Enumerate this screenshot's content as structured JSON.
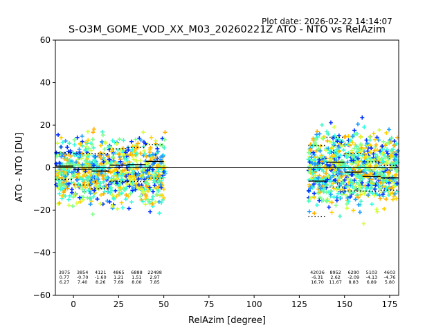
{
  "plot_date": "Plot date: 2026-02-22 14:14:07",
  "chart_data": {
    "type": "scatter",
    "title": "S-O3M_GOME_VOD_XX_M03_20260221Z ATO - NTO vs RelAzim",
    "xlabel": "RelAzim [degree]",
    "ylabel": "ATO - NTO [DU]",
    "xlim": [
      -10,
      180
    ],
    "ylim": [
      -60,
      60
    ],
    "xticks": [
      0,
      25,
      50,
      75,
      100,
      125,
      150,
      175
    ],
    "yticks": [
      -60,
      -40,
      -20,
      0,
      20,
      40,
      60
    ],
    "grid": false,
    "zero_line": 0,
    "scatter_colors": [
      "#1f9eff",
      "#2dffe0",
      "#7dff8a",
      "#d4ff3a",
      "#ffd000",
      "#ffb000",
      "#0030ff",
      "#42f5c8"
    ],
    "clusters": [
      {
        "x_range": [
          -10,
          51
        ],
        "y_center": -2,
        "y_spread": 14
      },
      {
        "x_range": [
          130,
          180
        ],
        "y_center": 0,
        "y_spread": 16
      }
    ],
    "bins": [
      {
        "x_range": [
          -10,
          0
        ],
        "mean": 0.77,
        "std": 6.27,
        "n": 3975,
        "n_label": "3975",
        "mean_label": "0.77",
        "std_label": "6.27"
      },
      {
        "x_range": [
          0,
          10
        ],
        "mean": -0.7,
        "std": 7.4,
        "n": 3854,
        "n_label": "3854",
        "mean_label": "-0.70",
        "std_label": "7.40"
      },
      {
        "x_range": [
          10,
          20
        ],
        "mean": -1.6,
        "std": 8.26,
        "n": 4121,
        "n_label": "4121",
        "mean_label": "-1.60",
        "std_label": "8.26"
      },
      {
        "x_range": [
          20,
          30
        ],
        "mean": 1.21,
        "std": 7.69,
        "n": 4865,
        "n_label": "4865",
        "mean_label": "1.21",
        "std_label": "7.69"
      },
      {
        "x_range": [
          30,
          40
        ],
        "mean": 1.51,
        "std": 8.0,
        "n": 6888,
        "n_label": "6888",
        "mean_label": "1.51",
        "std_label": "8.00"
      },
      {
        "x_range": [
          40,
          50
        ],
        "mean": 2.97,
        "std": 7.85,
        "n": 22498,
        "n_label": "22498",
        "mean_label": "2.97",
        "std_label": "7.85"
      },
      {
        "x_range": [
          130,
          140
        ],
        "mean": -6.31,
        "std": 16.7,
        "n": 42036,
        "n_label": "42036",
        "mean_label": "-6.31",
        "std_label": "16.70"
      },
      {
        "x_range": [
          140,
          150
        ],
        "mean": 2.62,
        "std": 11.67,
        "n": 8952,
        "n_label": "8952",
        "mean_label": "2.62",
        "std_label": "11.67"
      },
      {
        "x_range": [
          150,
          160
        ],
        "mean": -2.09,
        "std": 8.83,
        "n": 6290,
        "n_label": "6290",
        "mean_label": "-2.09",
        "std_label": "8.83"
      },
      {
        "x_range": [
          160,
          170
        ],
        "mean": -4.13,
        "std": 6.89,
        "n": 5103,
        "n_label": "5103",
        "mean_label": "-4.13",
        "std_label": "6.89"
      },
      {
        "x_range": [
          170,
          180
        ],
        "mean": -4.76,
        "std": 5.8,
        "n": 4603,
        "n_label": "4603",
        "mean_label": "-4.76",
        "std_label": "5.80"
      }
    ]
  }
}
